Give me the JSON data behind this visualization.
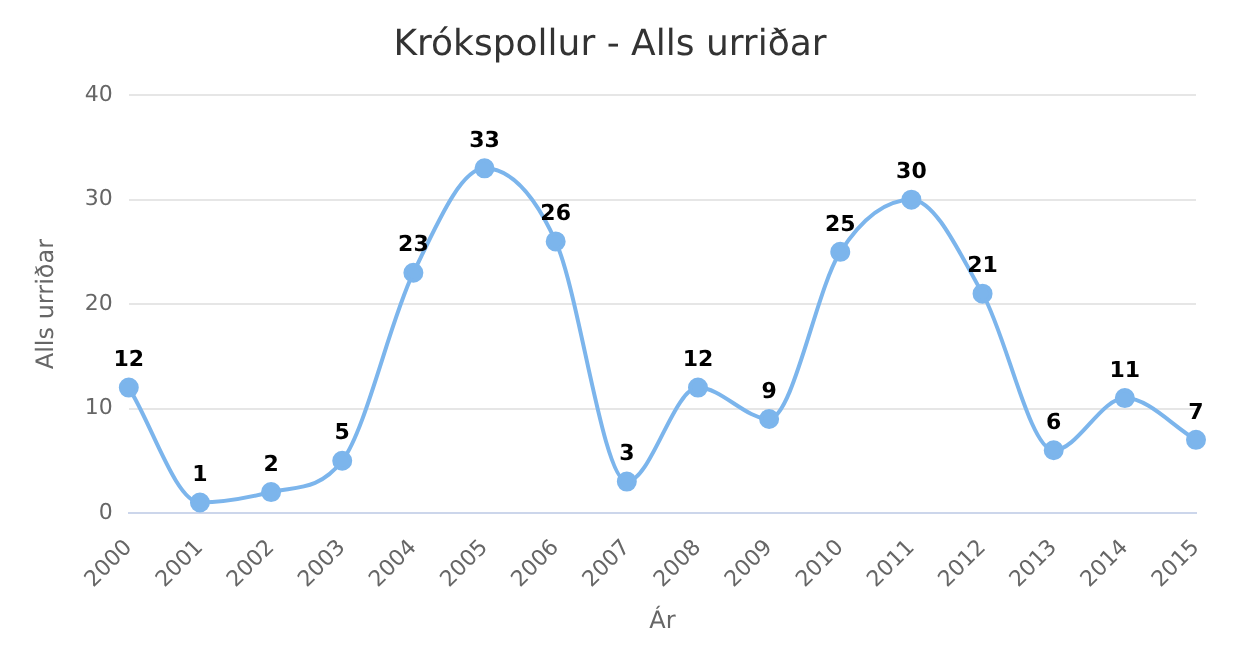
{
  "chart_data": {
    "type": "line",
    "title": "Krókspollur - Alls urriðar",
    "xlabel": "Ár",
    "ylabel": "Alls urriðar",
    "categories": [
      "2000",
      "2001",
      "2002",
      "2003",
      "2004",
      "2005",
      "2006",
      "2007",
      "2008",
      "2009",
      "2010",
      "2011",
      "2012",
      "2013",
      "2014",
      "2015"
    ],
    "series": [
      {
        "color": "#7cb5ec",
        "values": [
          12,
          1,
          2,
          5,
          23,
          33,
          26,
          3,
          12,
          9,
          25,
          30,
          21,
          6,
          11,
          7
        ]
      }
    ],
    "ylim": [
      0,
      40
    ],
    "yticks": [
      0,
      10,
      20,
      30,
      40
    ],
    "grid": "y",
    "legend": false,
    "marker": "circle",
    "line_style": "solid",
    "data_labels": true
  }
}
